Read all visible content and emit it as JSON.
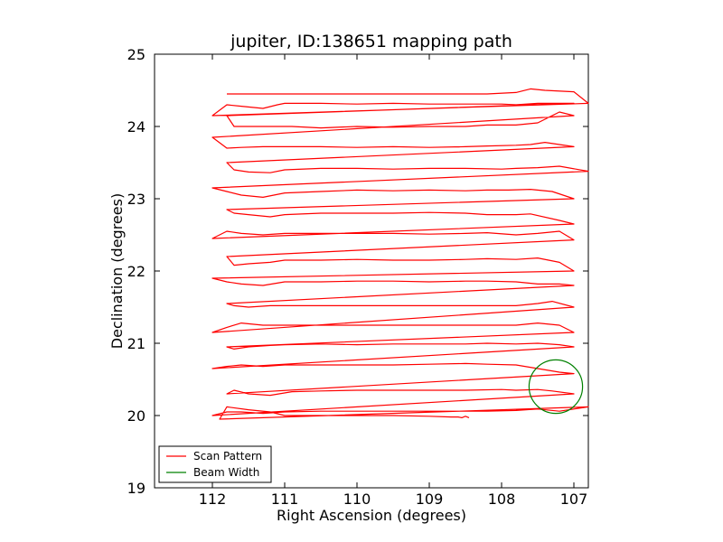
{
  "chart_data": {
    "type": "line",
    "title": "jupiter, ID:138651 mapping path",
    "xlabel": "Right Ascension (degrees)",
    "ylabel": "Declination (degrees)",
    "xlim": [
      112.8,
      106.8
    ],
    "ylim": [
      19,
      25
    ],
    "xticks": [
      112,
      111,
      110,
      109,
      108,
      107
    ],
    "yticks": [
      19,
      20,
      21,
      22,
      23,
      24,
      25
    ],
    "grid": false,
    "legend": {
      "position": "lower-left"
    },
    "series": [
      {
        "name": "Scan Pattern",
        "color": "#ff0000",
        "x": [
          111.8,
          111.7,
          111.5,
          111.2,
          111.0,
          110.8,
          110.5,
          110.0,
          109.5,
          109.0,
          108.5,
          108.2,
          107.8,
          107.6,
          107.4,
          107.0,
          106.8,
          112.0,
          111.8,
          111.6,
          111.3,
          111.1,
          111.0,
          110.5,
          110.0,
          109.5,
          109.0,
          108.5,
          108.0,
          107.8,
          107.5,
          107.2,
          107.0,
          111.8,
          111.7,
          111.5,
          111.2,
          110.9,
          110.5,
          110.0,
          109.5,
          109.0,
          108.5,
          108.2,
          107.8,
          107.5,
          107.2,
          107.0,
          112.0,
          111.8,
          111.6,
          111.3,
          111.0,
          110.5,
          110.0,
          109.5,
          109.0,
          108.5,
          108.2,
          107.8,
          107.6,
          107.4,
          107.0,
          111.8,
          111.7,
          111.5,
          111.2,
          111.0,
          110.5,
          110.0,
          109.5,
          109.0,
          108.5,
          108.0,
          107.8,
          107.5,
          107.2,
          106.8,
          112.0,
          111.8,
          111.6,
          111.3,
          111.0,
          110.5,
          110.0,
          109.5,
          109.0,
          108.5,
          108.2,
          107.9,
          107.6,
          107.3,
          107.0,
          111.8,
          111.7,
          111.5,
          111.2,
          111.0,
          110.5,
          110.0,
          109.5,
          109.0,
          108.5,
          108.2,
          107.8,
          107.6,
          107.2,
          107.0,
          112.0,
          111.8,
          111.6,
          111.3,
          111.0,
          110.5,
          110.0,
          109.5,
          109.0,
          108.5,
          108.2,
          107.8,
          107.5,
          107.2,
          107.0,
          111.8,
          111.7,
          111.5,
          111.2,
          111.0,
          110.5,
          110.0,
          109.5,
          109.0,
          108.5,
          108.2,
          107.8,
          107.5,
          107.2,
          107.0,
          112.0,
          111.8,
          111.6,
          111.3,
          111.0,
          110.5,
          110.0,
          109.5,
          109.0,
          108.5,
          108.2,
          107.8,
          107.5,
          107.2,
          107.0,
          111.8,
          111.7,
          111.5,
          111.2,
          110.9,
          110.5,
          110.0,
          109.5,
          109.0,
          108.5,
          108.0,
          107.8,
          107.5,
          107.3,
          107.0,
          112.0,
          111.8,
          111.6,
          111.3,
          111.0,
          110.5,
          110.0,
          109.5,
          109.0,
          108.5,
          108.2,
          107.8,
          107.5,
          107.2,
          107.0,
          111.8,
          111.7,
          111.5,
          111.2,
          111.0,
          110.5,
          110.0,
          109.5,
          109.0,
          108.5,
          108.2,
          107.8,
          107.5,
          107.2,
          107.0,
          112.0,
          111.8,
          111.6,
          111.3,
          111.0,
          110.5,
          110.0,
          109.5,
          109.0,
          108.5,
          108.2,
          107.8,
          107.5,
          107.2,
          107.0,
          111.8,
          111.7,
          111.5,
          111.2,
          110.9,
          110.5,
          110.0,
          109.5,
          109.0,
          108.5,
          108.0,
          107.8,
          107.5,
          107.3,
          107.0,
          112.0,
          111.8,
          111.6,
          111.3,
          111.0,
          110.5,
          110.0,
          109.5,
          109.0,
          108.5,
          108.2,
          107.8,
          107.5,
          107.2,
          106.8,
          111.9,
          111.8,
          111.5,
          111.2,
          111.0,
          110.5,
          110.0,
          109.5,
          109.0,
          108.7,
          108.6,
          108.55,
          108.5,
          108.45
        ],
        "y": [
          24.45,
          24.45,
          24.45,
          24.45,
          24.45,
          24.45,
          24.45,
          24.45,
          24.45,
          24.45,
          24.45,
          24.45,
          24.47,
          24.52,
          24.5,
          24.48,
          24.32,
          24.15,
          24.3,
          24.28,
          24.25,
          24.3,
          24.32,
          24.32,
          24.31,
          24.32,
          24.31,
          24.31,
          24.31,
          24.3,
          24.32,
          24.32,
          24.32,
          24.15,
          24.0,
          24.0,
          24.0,
          24.0,
          23.98,
          24.0,
          23.99,
          24.0,
          24.0,
          24.02,
          24.02,
          24.05,
          24.2,
          24.15,
          23.85,
          23.7,
          23.71,
          23.72,
          23.72,
          23.72,
          23.71,
          23.72,
          23.71,
          23.72,
          23.73,
          23.74,
          23.75,
          23.78,
          23.72,
          23.5,
          23.4,
          23.37,
          23.36,
          23.4,
          23.42,
          23.42,
          23.41,
          23.42,
          23.42,
          23.41,
          23.42,
          23.43,
          23.45,
          23.38,
          23.15,
          23.1,
          23.05,
          23.02,
          23.08,
          23.1,
          23.12,
          23.11,
          23.12,
          23.11,
          23.12,
          23.12,
          23.13,
          23.1,
          23.0,
          22.85,
          22.8,
          22.78,
          22.75,
          22.78,
          22.8,
          22.8,
          22.8,
          22.81,
          22.8,
          22.78,
          22.78,
          22.79,
          22.7,
          22.65,
          22.45,
          22.55,
          22.52,
          22.5,
          22.52,
          22.52,
          22.52,
          22.52,
          22.51,
          22.52,
          22.53,
          22.5,
          22.52,
          22.55,
          22.43,
          22.2,
          22.08,
          22.1,
          22.12,
          22.15,
          22.15,
          22.16,
          22.15,
          22.15,
          22.16,
          22.17,
          22.16,
          22.18,
          22.12,
          22.0,
          21.9,
          21.85,
          21.82,
          21.8,
          21.85,
          21.85,
          21.86,
          21.86,
          21.85,
          21.86,
          21.86,
          21.85,
          21.82,
          21.82,
          21.8,
          21.55,
          21.52,
          21.5,
          21.52,
          21.52,
          21.52,
          21.52,
          21.52,
          21.52,
          21.52,
          21.52,
          21.52,
          21.55,
          21.58,
          21.5,
          21.15,
          21.22,
          21.28,
          21.25,
          21.25,
          21.25,
          21.25,
          21.25,
          21.25,
          21.25,
          21.25,
          21.25,
          21.28,
          21.25,
          21.15,
          20.95,
          20.92,
          20.95,
          20.97,
          20.98,
          20.99,
          20.98,
          20.99,
          20.99,
          20.99,
          21.0,
          20.99,
          21.0,
          20.98,
          20.95,
          20.65,
          20.68,
          20.7,
          20.68,
          20.7,
          20.7,
          20.7,
          20.7,
          20.71,
          20.72,
          20.71,
          20.7,
          20.65,
          20.6,
          20.58,
          20.3,
          20.35,
          20.3,
          20.28,
          20.33,
          20.34,
          20.35,
          20.35,
          20.35,
          20.35,
          20.36,
          20.35,
          20.36,
          20.34,
          20.3,
          20.0,
          20.05,
          20.05,
          20.03,
          20.05,
          20.06,
          20.06,
          20.06,
          20.06,
          20.06,
          20.06,
          20.07,
          20.09,
          20.06,
          20.12,
          19.95,
          20.12,
          20.08,
          20.05,
          20.0,
          20.0,
          20.0,
          20.0,
          19.99,
          19.98,
          19.98,
          19.97,
          19.99,
          19.97
        ]
      },
      {
        "name": "Beam Width",
        "color": "#008000",
        "center": [
          107.25,
          20.4
        ],
        "radius": 0.37
      }
    ]
  }
}
